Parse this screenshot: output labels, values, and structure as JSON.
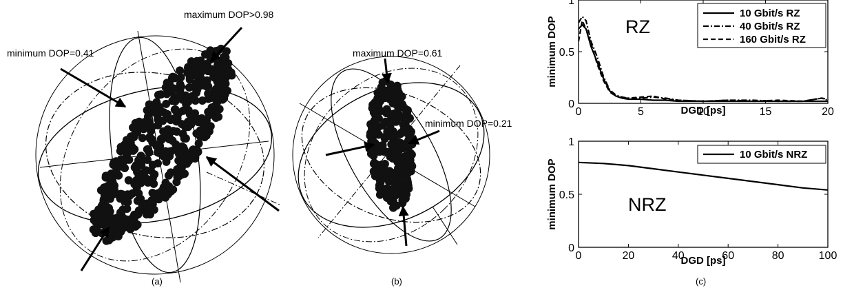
{
  "panels": {
    "a": {
      "caption": "(a)",
      "annotations": [
        "maximum DOP>0.98",
        "minimum DOP=0.41"
      ],
      "icon": "poincare-sphere-icon"
    },
    "b": {
      "caption": "(b)",
      "annotations": [
        "maximum DOP=0.61",
        "minimum DOP=0.21"
      ],
      "icon": "poincare-sphere-icon"
    },
    "c": {
      "caption": "(c)"
    }
  },
  "chart_data": [
    {
      "type": "line",
      "panel": "c-top",
      "mode_label": "RZ",
      "xlabel": "DGD [ps]",
      "ylabel": "minimum DOP",
      "xlim": [
        0,
        20
      ],
      "ylim": [
        0,
        1
      ],
      "xticks": [
        0,
        5,
        10,
        15,
        20
      ],
      "yticks": [
        0,
        0.5,
        1
      ],
      "ytick_labels": [
        "0",
        "0.5",
        "1"
      ],
      "legend_position": "top-right",
      "series": [
        {
          "name": "10 Gbit/s RZ",
          "style": "solid",
          "x": [
            0,
            0.3,
            0.6,
            1.0,
            1.5,
            2.0,
            2.5,
            3.0,
            3.5,
            4.0,
            5.0,
            6.0,
            7.0,
            8.0,
            10.0,
            12.0,
            14.0,
            16.0,
            18.0,
            20.0
          ],
          "y": [
            0.72,
            0.76,
            0.72,
            0.55,
            0.4,
            0.24,
            0.12,
            0.07,
            0.05,
            0.04,
            0.04,
            0.03,
            0.03,
            0.02,
            0.02,
            0.02,
            0.02,
            0.02,
            0.02,
            0.02
          ]
        },
        {
          "name": "40 Gbit/s RZ",
          "style": "dashdot",
          "x": [
            0,
            0.3,
            0.6,
            1.0,
            1.5,
            2.0,
            2.5,
            3.0,
            3.5,
            4.0,
            5.0,
            6.0,
            7.0,
            8.0,
            10.0,
            12.0,
            14.0,
            16.0,
            18.0,
            19.5,
            20.0
          ],
          "y": [
            0.78,
            0.84,
            0.8,
            0.6,
            0.45,
            0.26,
            0.13,
            0.08,
            0.06,
            0.05,
            0.05,
            0.06,
            0.05,
            0.03,
            0.02,
            0.03,
            0.03,
            0.02,
            0.02,
            0.05,
            0.03
          ]
        },
        {
          "name": "160 Gbit/s RZ",
          "style": "dashed",
          "x": [
            0,
            0.3,
            0.6,
            1.0,
            1.5,
            2.0,
            2.5,
            3.0,
            3.5,
            4.0,
            5.0,
            6.0,
            7.0,
            8.0,
            10.0,
            12.0,
            14.0,
            16.0,
            18.0,
            19.5,
            20.0
          ],
          "y": [
            0.6,
            0.8,
            0.72,
            0.58,
            0.38,
            0.22,
            0.11,
            0.07,
            0.05,
            0.05,
            0.06,
            0.07,
            0.04,
            0.03,
            0.02,
            0.03,
            0.02,
            0.03,
            0.02,
            0.05,
            0.04
          ]
        }
      ]
    },
    {
      "type": "line",
      "panel": "c-bottom",
      "mode_label": "NRZ",
      "xlabel": "DGD [ps]",
      "ylabel": "minimum DOP",
      "xlim": [
        0,
        100
      ],
      "ylim": [
        0,
        1
      ],
      "xticks": [
        0,
        20,
        40,
        60,
        80,
        100
      ],
      "yticks": [
        0,
        0.5,
        1
      ],
      "ytick_labels": [
        "0",
        "0.5",
        "1"
      ],
      "legend_position": "top-right",
      "series": [
        {
          "name": "10 Gbit/s NRZ",
          "style": "solid",
          "x": [
            0,
            10,
            20,
            30,
            40,
            50,
            60,
            70,
            80,
            90,
            100
          ],
          "y": [
            0.8,
            0.79,
            0.77,
            0.74,
            0.71,
            0.68,
            0.65,
            0.62,
            0.59,
            0.56,
            0.54
          ]
        }
      ]
    }
  ]
}
